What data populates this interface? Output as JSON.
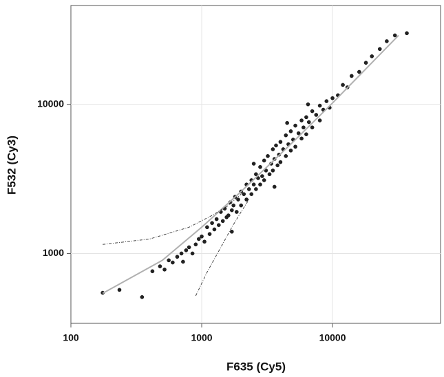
{
  "chart_data": {
    "type": "scatter",
    "xlabel": "F635 (Cy5)",
    "ylabel": "F532 (Cy3)",
    "xscale": "log",
    "yscale": "log",
    "xlim": [
      100,
      67000
    ],
    "ylim": [
      340,
      46000
    ],
    "xticks": [
      100,
      1000,
      10000
    ],
    "yticks": [
      1000,
      10000
    ],
    "grid": true,
    "series": [
      {
        "type": "scatter",
        "color": "#222222",
        "x": [
          175,
          235,
          350,
          420,
          480,
          520,
          560,
          600,
          650,
          700,
          720,
          760,
          800,
          850,
          900,
          950,
          1000,
          1050,
          1100,
          1150,
          1200,
          1250,
          1300,
          1350,
          1400,
          1450,
          1500,
          1550,
          1600,
          1650,
          1700,
          1750,
          1800,
          1850,
          1900,
          2000,
          2000,
          2100,
          2200,
          2200,
          2300,
          2400,
          2400,
          2500,
          2600,
          2600,
          2700,
          2800,
          2800,
          2900,
          3000,
          3000,
          3100,
          3200,
          3300,
          3400,
          3500,
          3500,
          3600,
          3700,
          3800,
          3900,
          4000,
          4000,
          4200,
          4400,
          4400,
          4600,
          4800,
          4800,
          5000,
          5200,
          5200,
          5500,
          5800,
          5800,
          6000,
          6300,
          6300,
          6600,
          7000,
          7000,
          7500,
          8000,
          8000,
          8500,
          9000,
          9500,
          10000,
          11000,
          12000,
          13000,
          14000,
          16000,
          18000,
          20000,
          23000,
          26000,
          30000,
          37000,
          1700,
          2500,
          4500,
          6500,
          3600
        ],
        "values": [
          545,
          570,
          510,
          760,
          820,
          780,
          900,
          870,
          950,
          1000,
          880,
          1050,
          1100,
          1000,
          1150,
          1250,
          1300,
          1200,
          1500,
          1350,
          1600,
          1450,
          1700,
          1550,
          1900,
          1650,
          2000,
          1750,
          1800,
          2200,
          1950,
          2100,
          2400,
          1900,
          2300,
          2600,
          2100,
          2500,
          2900,
          2300,
          2700,
          3100,
          2500,
          2900,
          3400,
          2700,
          3200,
          3800,
          2900,
          3300,
          4200,
          3100,
          3600,
          4500,
          3400,
          4000,
          5000,
          3600,
          4300,
          5300,
          3900,
          4600,
          5600,
          4100,
          5000,
          6200,
          4500,
          5400,
          6600,
          4900,
          5800,
          7200,
          5200,
          6400,
          7800,
          5900,
          7000,
          8200,
          6300,
          7600,
          9000,
          7000,
          8500,
          9800,
          7800,
          9200,
          10500,
          9500,
          11000,
          11500,
          13500,
          13000,
          15500,
          16500,
          19000,
          21000,
          23500,
          26500,
          29000,
          30000,
          1400,
          4000,
          7500,
          10000,
          2800
        ]
      },
      {
        "type": "line",
        "color": "#b0b0b0",
        "x": [
          175,
          500,
          1000,
          2000,
          5000,
          10000,
          20000,
          32000
        ],
        "values": [
          540,
          900,
          1500,
          2600,
          5600,
          10200,
          19000,
          29000
        ]
      },
      {
        "type": "line",
        "color": "#444444",
        "dashed": true,
        "x": [
          175,
          400,
          800,
          1200,
          1600,
          2000
        ],
        "values": [
          1150,
          1250,
          1500,
          1800,
          2100,
          2500
        ]
      },
      {
        "type": "line",
        "color": "#444444",
        "dashed": true,
        "x": [
          900,
          1100,
          1400,
          1700,
          2000,
          2300
        ],
        "values": [
          520,
          750,
          1100,
          1500,
          1900,
          2300
        ]
      }
    ]
  }
}
